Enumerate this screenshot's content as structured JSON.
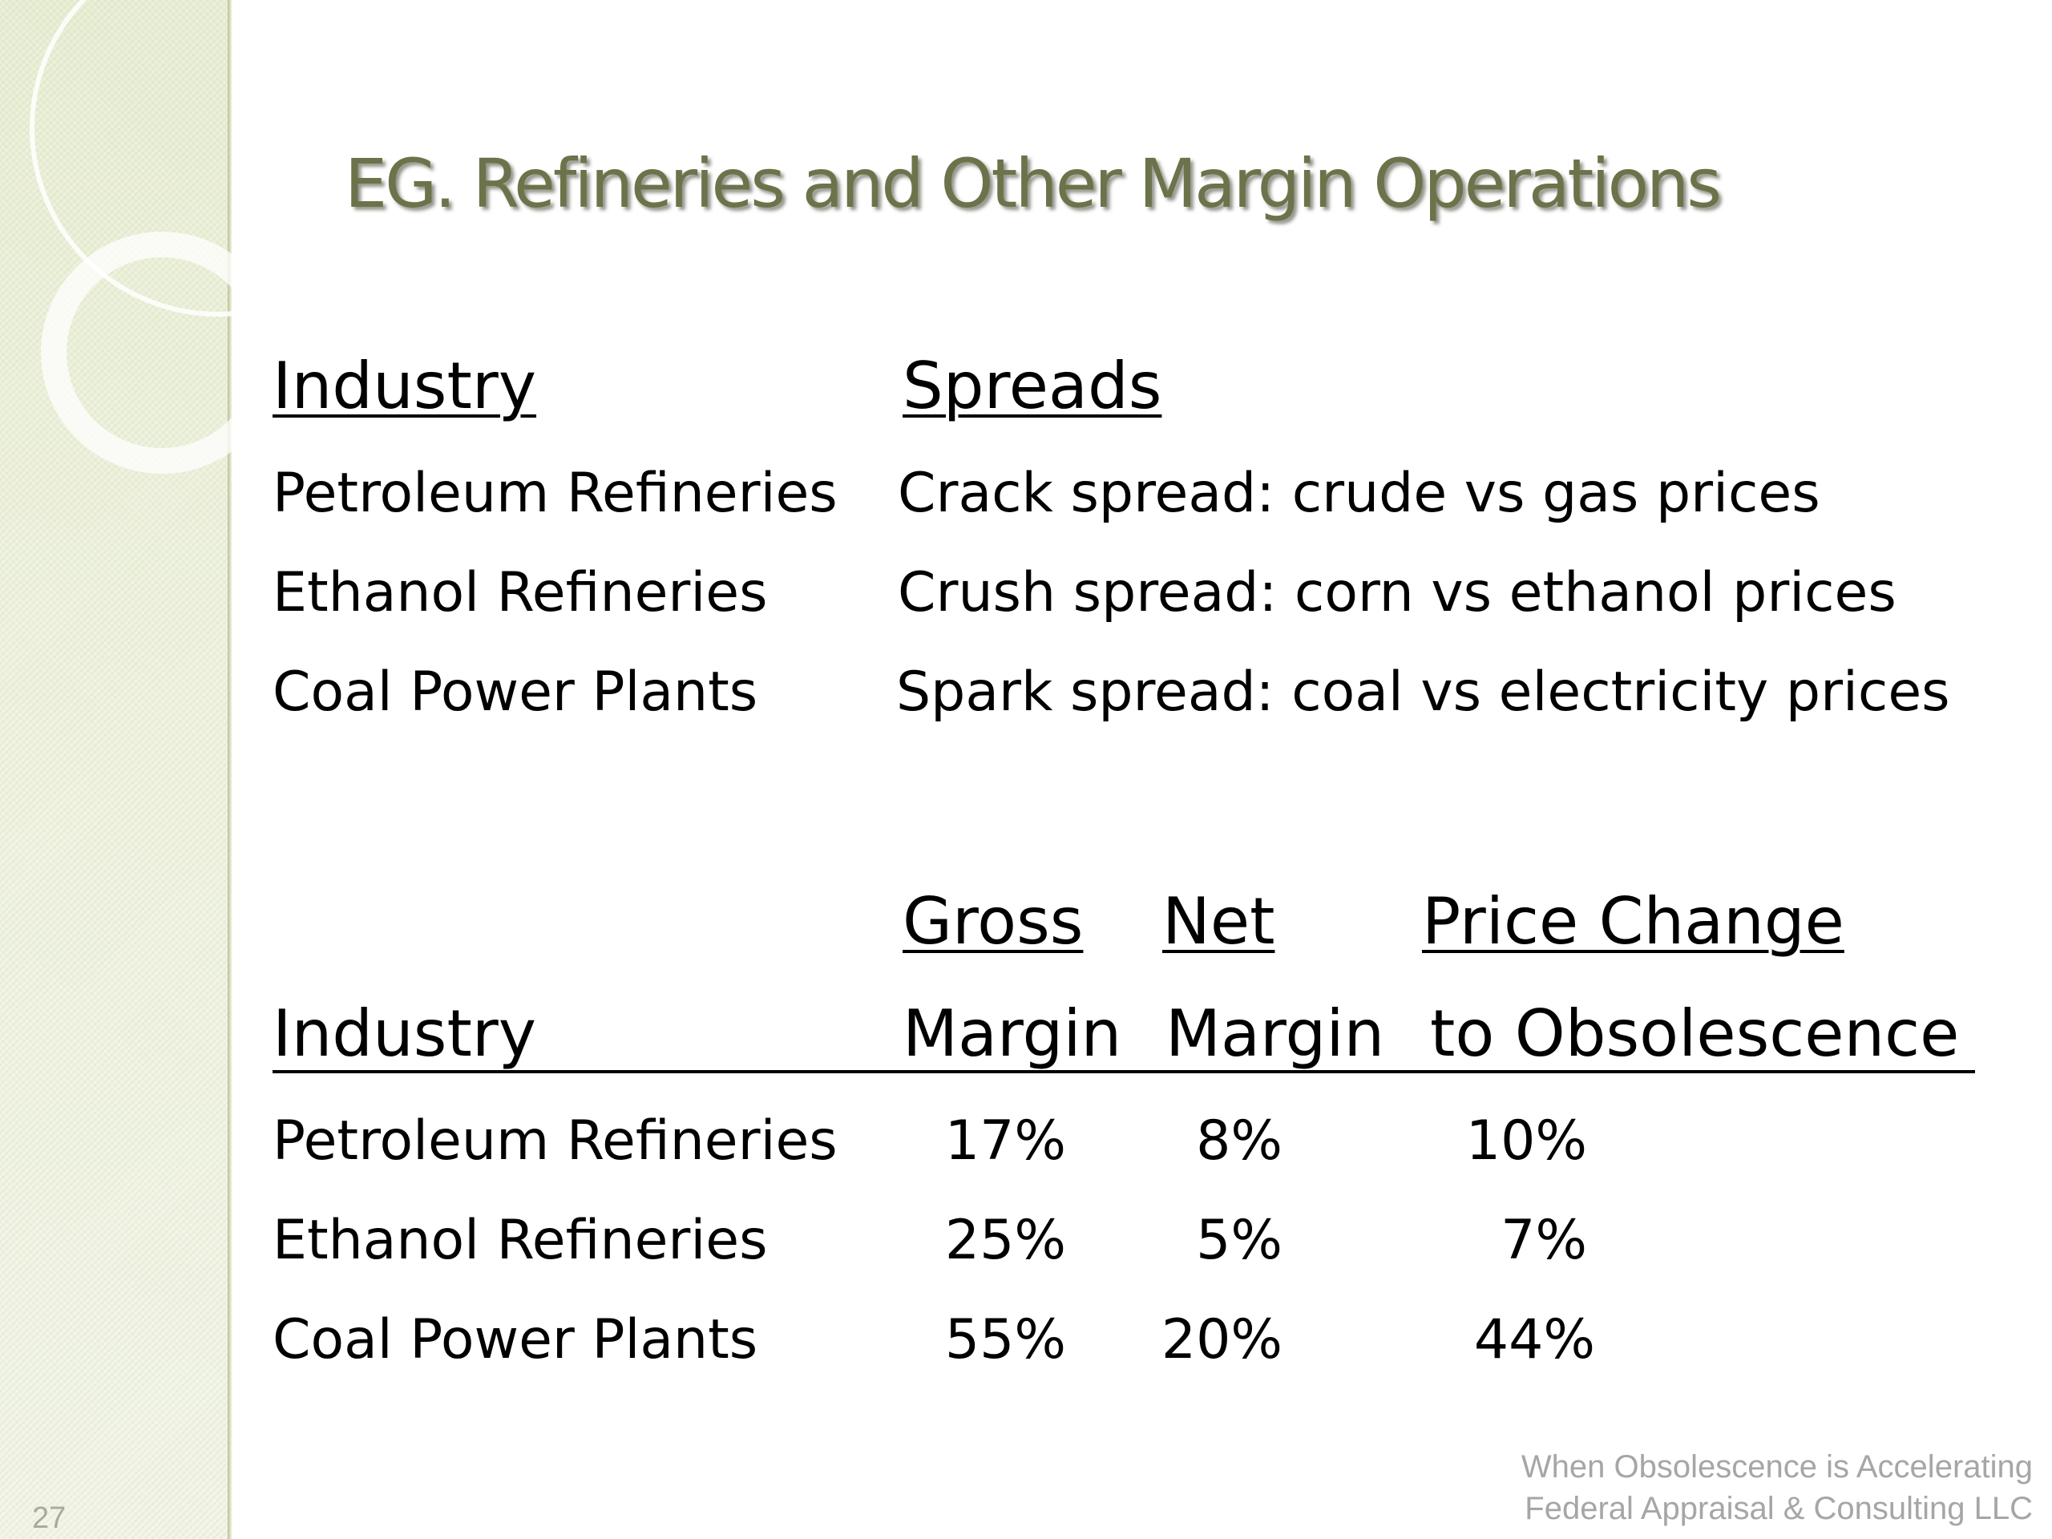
{
  "slide": {
    "number": "27",
    "title": "EG. Refineries and Other Margin Operations"
  },
  "spreads_table": {
    "headers": {
      "industry": "Industry",
      "spreads": "Spreads"
    },
    "rows": [
      {
        "industry": "Petroleum Refineries",
        "spread": "Crack spread:  crude vs gas prices"
      },
      {
        "industry": "Ethanol Refineries",
        "spread": "Crush spread:  corn vs ethanol prices"
      },
      {
        "industry": "Coal Power Plants",
        "spread": "Spark spread:  coal vs electricity prices"
      }
    ]
  },
  "margins_table": {
    "headers": {
      "industry": "Industry",
      "gross_line1": "Gross",
      "gross_line2": "Margin",
      "net_line1": "Net",
      "net_line2": "Margin",
      "price_line1": "Price Change",
      "price_line2": "to Obsolescence"
    },
    "rows": [
      {
        "industry": "Petroleum Refineries",
        "gross": "17%",
        "net": "8%",
        "price": "10%"
      },
      {
        "industry": "Ethanol Refineries",
        "gross": "25%",
        "net": "5%",
        "price": "7%"
      },
      {
        "industry": "Coal Power Plants",
        "gross": "55%",
        "net": "20%",
        "price": "44%"
      }
    ]
  },
  "footer": {
    "line1": "When Obsolescence is Accelerating",
    "line2": "Federal Appraisal & Consulting LLC"
  },
  "colors": {
    "title": "#6b734a",
    "sidebar": "#e7edd2",
    "footer_text": "#a6a6a6"
  }
}
